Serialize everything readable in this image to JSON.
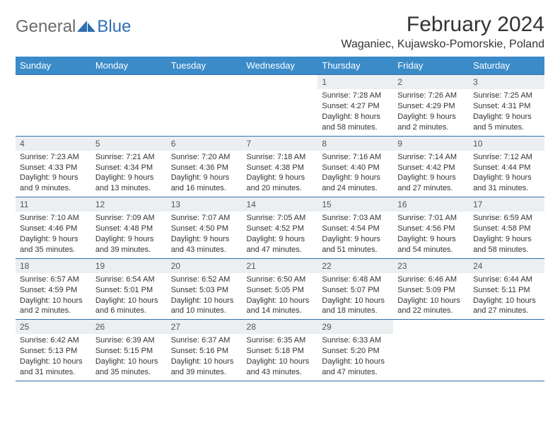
{
  "logo": {
    "text1": "General",
    "text2": "Blue"
  },
  "header": {
    "title": "February 2024",
    "location": "Waganiec, Kujawsko-Pomorskie, Poland"
  },
  "dayHeaders": [
    "Sunday",
    "Monday",
    "Tuesday",
    "Wednesday",
    "Thursday",
    "Friday",
    "Saturday"
  ],
  "colors": {
    "header_bg": "#3b8bc9",
    "header_fg": "#ffffff",
    "rule": "#2f6fb0",
    "daynum_bg": "#eceff1",
    "text": "#333333",
    "logo_gray": "#6b6b6b",
    "logo_blue": "#2f6fb0"
  },
  "weeks": [
    [
      null,
      null,
      null,
      null,
      {
        "n": "1",
        "sunrise": "Sunrise: 7:28 AM",
        "sunset": "Sunset: 4:27 PM",
        "day": "Daylight: 8 hours and 58 minutes."
      },
      {
        "n": "2",
        "sunrise": "Sunrise: 7:26 AM",
        "sunset": "Sunset: 4:29 PM",
        "day": "Daylight: 9 hours and 2 minutes."
      },
      {
        "n": "3",
        "sunrise": "Sunrise: 7:25 AM",
        "sunset": "Sunset: 4:31 PM",
        "day": "Daylight: 9 hours and 5 minutes."
      }
    ],
    [
      {
        "n": "4",
        "sunrise": "Sunrise: 7:23 AM",
        "sunset": "Sunset: 4:33 PM",
        "day": "Daylight: 9 hours and 9 minutes."
      },
      {
        "n": "5",
        "sunrise": "Sunrise: 7:21 AM",
        "sunset": "Sunset: 4:34 PM",
        "day": "Daylight: 9 hours and 13 minutes."
      },
      {
        "n": "6",
        "sunrise": "Sunrise: 7:20 AM",
        "sunset": "Sunset: 4:36 PM",
        "day": "Daylight: 9 hours and 16 minutes."
      },
      {
        "n": "7",
        "sunrise": "Sunrise: 7:18 AM",
        "sunset": "Sunset: 4:38 PM",
        "day": "Daylight: 9 hours and 20 minutes."
      },
      {
        "n": "8",
        "sunrise": "Sunrise: 7:16 AM",
        "sunset": "Sunset: 4:40 PM",
        "day": "Daylight: 9 hours and 24 minutes."
      },
      {
        "n": "9",
        "sunrise": "Sunrise: 7:14 AM",
        "sunset": "Sunset: 4:42 PM",
        "day": "Daylight: 9 hours and 27 minutes."
      },
      {
        "n": "10",
        "sunrise": "Sunrise: 7:12 AM",
        "sunset": "Sunset: 4:44 PM",
        "day": "Daylight: 9 hours and 31 minutes."
      }
    ],
    [
      {
        "n": "11",
        "sunrise": "Sunrise: 7:10 AM",
        "sunset": "Sunset: 4:46 PM",
        "day": "Daylight: 9 hours and 35 minutes."
      },
      {
        "n": "12",
        "sunrise": "Sunrise: 7:09 AM",
        "sunset": "Sunset: 4:48 PM",
        "day": "Daylight: 9 hours and 39 minutes."
      },
      {
        "n": "13",
        "sunrise": "Sunrise: 7:07 AM",
        "sunset": "Sunset: 4:50 PM",
        "day": "Daylight: 9 hours and 43 minutes."
      },
      {
        "n": "14",
        "sunrise": "Sunrise: 7:05 AM",
        "sunset": "Sunset: 4:52 PM",
        "day": "Daylight: 9 hours and 47 minutes."
      },
      {
        "n": "15",
        "sunrise": "Sunrise: 7:03 AM",
        "sunset": "Sunset: 4:54 PM",
        "day": "Daylight: 9 hours and 51 minutes."
      },
      {
        "n": "16",
        "sunrise": "Sunrise: 7:01 AM",
        "sunset": "Sunset: 4:56 PM",
        "day": "Daylight: 9 hours and 54 minutes."
      },
      {
        "n": "17",
        "sunrise": "Sunrise: 6:59 AM",
        "sunset": "Sunset: 4:58 PM",
        "day": "Daylight: 9 hours and 58 minutes."
      }
    ],
    [
      {
        "n": "18",
        "sunrise": "Sunrise: 6:57 AM",
        "sunset": "Sunset: 4:59 PM",
        "day": "Daylight: 10 hours and 2 minutes."
      },
      {
        "n": "19",
        "sunrise": "Sunrise: 6:54 AM",
        "sunset": "Sunset: 5:01 PM",
        "day": "Daylight: 10 hours and 6 minutes."
      },
      {
        "n": "20",
        "sunrise": "Sunrise: 6:52 AM",
        "sunset": "Sunset: 5:03 PM",
        "day": "Daylight: 10 hours and 10 minutes."
      },
      {
        "n": "21",
        "sunrise": "Sunrise: 6:50 AM",
        "sunset": "Sunset: 5:05 PM",
        "day": "Daylight: 10 hours and 14 minutes."
      },
      {
        "n": "22",
        "sunrise": "Sunrise: 6:48 AM",
        "sunset": "Sunset: 5:07 PM",
        "day": "Daylight: 10 hours and 18 minutes."
      },
      {
        "n": "23",
        "sunrise": "Sunrise: 6:46 AM",
        "sunset": "Sunset: 5:09 PM",
        "day": "Daylight: 10 hours and 22 minutes."
      },
      {
        "n": "24",
        "sunrise": "Sunrise: 6:44 AM",
        "sunset": "Sunset: 5:11 PM",
        "day": "Daylight: 10 hours and 27 minutes."
      }
    ],
    [
      {
        "n": "25",
        "sunrise": "Sunrise: 6:42 AM",
        "sunset": "Sunset: 5:13 PM",
        "day": "Daylight: 10 hours and 31 minutes."
      },
      {
        "n": "26",
        "sunrise": "Sunrise: 6:39 AM",
        "sunset": "Sunset: 5:15 PM",
        "day": "Daylight: 10 hours and 35 minutes."
      },
      {
        "n": "27",
        "sunrise": "Sunrise: 6:37 AM",
        "sunset": "Sunset: 5:16 PM",
        "day": "Daylight: 10 hours and 39 minutes."
      },
      {
        "n": "28",
        "sunrise": "Sunrise: 6:35 AM",
        "sunset": "Sunset: 5:18 PM",
        "day": "Daylight: 10 hours and 43 minutes."
      },
      {
        "n": "29",
        "sunrise": "Sunrise: 6:33 AM",
        "sunset": "Sunset: 5:20 PM",
        "day": "Daylight: 10 hours and 47 minutes."
      },
      null,
      null
    ]
  ]
}
